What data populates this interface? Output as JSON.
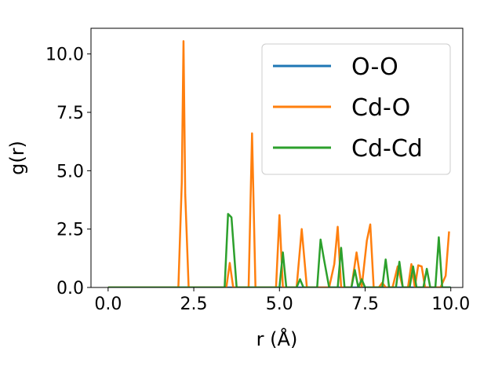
{
  "chart_data": {
    "type": "line",
    "xlabel": "r (Å)",
    "ylabel": "g(r)",
    "xlim": [
      -0.5,
      10.35
    ],
    "ylim": [
      0,
      11.1
    ],
    "xticks": [
      "0.0",
      "2.5",
      "5.0",
      "7.5",
      "10.0"
    ],
    "yticks": [
      "0.0",
      "2.5",
      "5.0",
      "7.5",
      "10.0"
    ],
    "grid": false,
    "legend_position": "top-right",
    "series": [
      {
        "name": "O-O",
        "color": "#1f77b4",
        "x": [
          0.0,
          10.0
        ],
        "y": [
          0.0,
          0.0
        ]
      },
      {
        "name": "Cd-O",
        "color": "#ff7f0e",
        "x": [
          0.0,
          2.05,
          2.15,
          2.2,
          2.25,
          2.35,
          3.45,
          3.55,
          3.65,
          4.1,
          4.2,
          4.3,
          4.9,
          5.0,
          5.1,
          5.5,
          5.65,
          5.8,
          6.45,
          6.6,
          6.7,
          6.8,
          7.1,
          7.25,
          7.4,
          7.55,
          7.65,
          7.75,
          7.9,
          8.0,
          8.1,
          8.3,
          8.45,
          8.6,
          8.75,
          8.85,
          8.95,
          9.05,
          9.15,
          9.25,
          9.35,
          9.5,
          9.7,
          9.85,
          9.95
        ],
        "y": [
          0.0,
          0.0,
          4.5,
          10.55,
          4.0,
          0.0,
          0.0,
          1.05,
          0.0,
          0.0,
          6.6,
          0.0,
          0.0,
          3.1,
          0.0,
          0.0,
          2.5,
          0.0,
          0.0,
          1.0,
          2.6,
          0.0,
          0.0,
          1.5,
          0.0,
          2.0,
          2.7,
          0.0,
          0.0,
          0.2,
          0.0,
          0.0,
          0.9,
          0.0,
          0.0,
          1.0,
          0.0,
          0.95,
          0.9,
          0.0,
          0.0,
          0.0,
          0.0,
          0.5,
          2.4
        ]
      },
      {
        "name": "Cd-Cd",
        "color": "#2ca02c",
        "x": [
          0.0,
          3.4,
          3.5,
          3.6,
          3.7,
          3.75,
          5.0,
          5.1,
          5.2,
          5.5,
          5.6,
          5.7,
          6.1,
          6.2,
          6.3,
          6.45,
          6.7,
          6.8,
          6.9,
          7.1,
          7.2,
          7.3,
          7.4,
          7.5,
          8.0,
          8.1,
          8.2,
          8.4,
          8.5,
          8.6,
          8.8,
          8.9,
          9.0,
          9.2,
          9.3,
          9.4,
          9.55,
          9.65,
          9.75,
          10.0
        ],
        "y": [
          0.0,
          0.0,
          3.15,
          3.0,
          1.0,
          0.0,
          0.0,
          1.5,
          0.0,
          0.0,
          0.35,
          0.0,
          0.0,
          2.05,
          1.2,
          0.0,
          0.0,
          1.7,
          0.0,
          0.0,
          0.75,
          0.0,
          0.35,
          0.0,
          0.0,
          1.2,
          0.0,
          0.0,
          1.1,
          0.0,
          0.0,
          0.9,
          0.0,
          0.0,
          0.8,
          0.0,
          0.0,
          2.15,
          0.0,
          0.0
        ]
      }
    ]
  }
}
